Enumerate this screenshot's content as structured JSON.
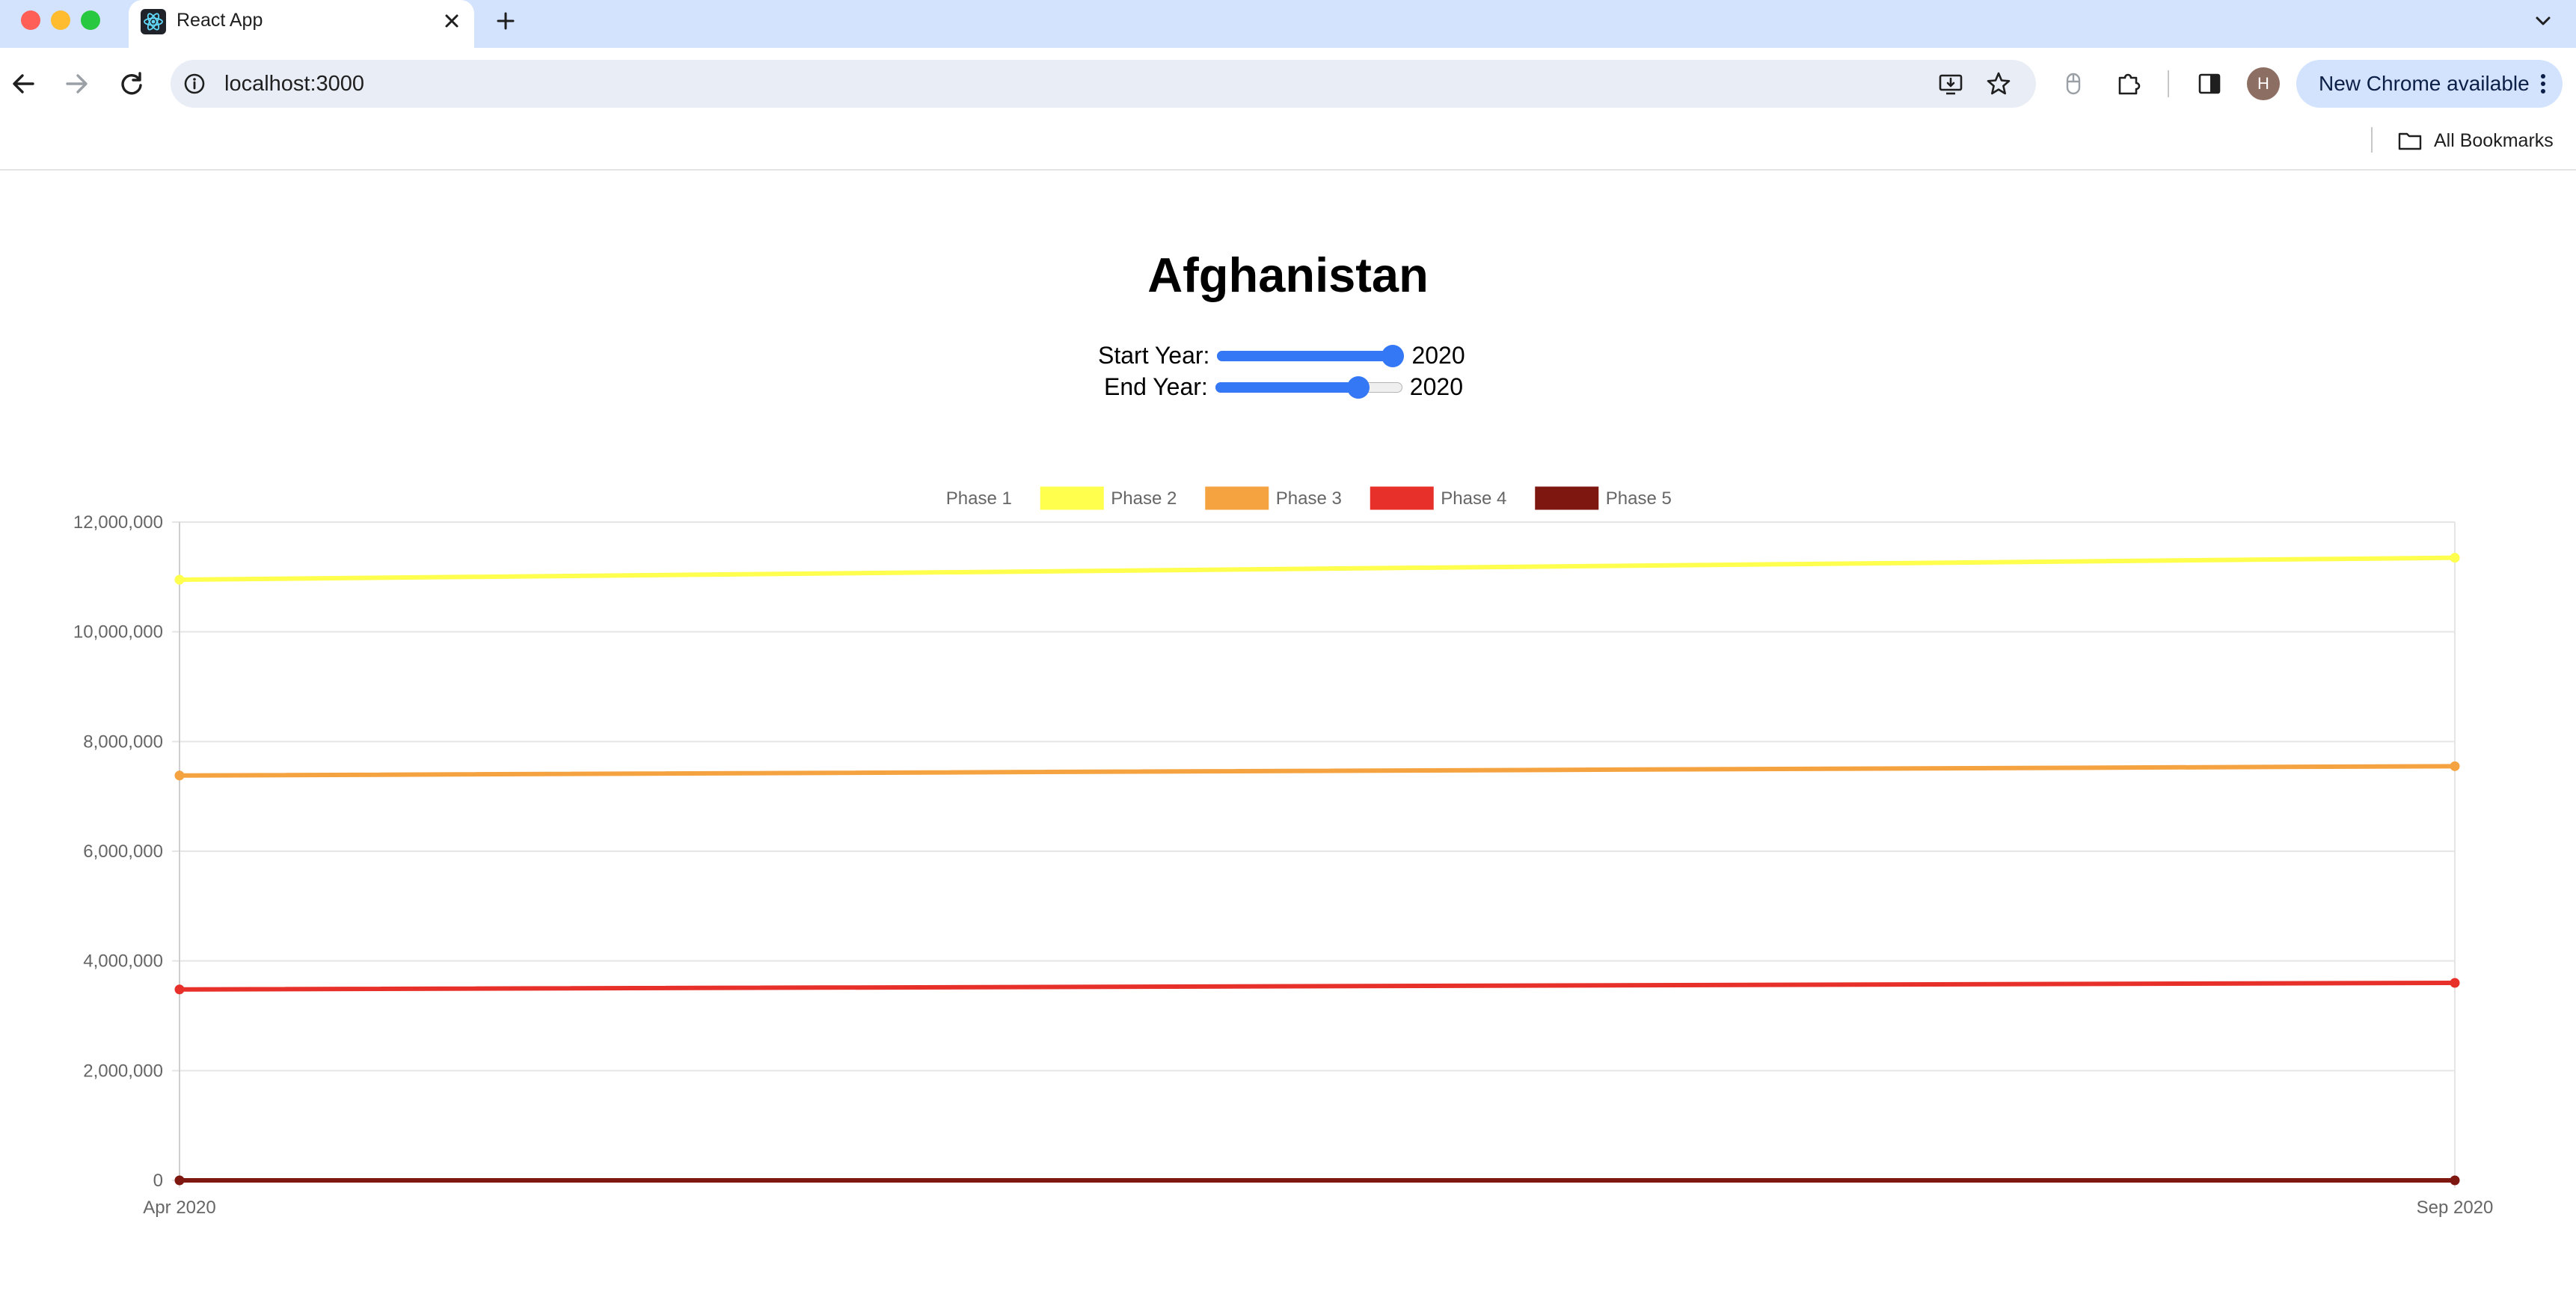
{
  "browser": {
    "tab_title": "React App",
    "url": "localhost:3000",
    "update_button_label": "New Chrome available",
    "avatar_initial": "H",
    "bookmarks_label": "All Bookmarks",
    "icons": [
      "tab-favicon-react-icon",
      "close-icon",
      "plus-icon",
      "chevron-down-icon",
      "back-arrow-icon",
      "forward-arrow-icon",
      "reload-icon",
      "site-info-icon",
      "install-app-icon",
      "bookmark-star-icon",
      "extension-mouse-icon",
      "extensions-puzzle-icon",
      "side-panel-icon",
      "more-vert-icon",
      "folder-icon"
    ]
  },
  "page": {
    "title": "Afghanistan",
    "start_year_label": "Start Year:",
    "start_year_value": "2020",
    "start_year_slider_fraction": 1.0,
    "end_year_label": "End Year:",
    "end_year_value": "2020",
    "end_year_slider_fraction": 0.8
  },
  "chart_data": {
    "type": "line",
    "x": [
      "Apr 2020",
      "Sep 2020"
    ],
    "ylim": [
      0,
      12000000
    ],
    "yticks": [
      0,
      2000000,
      4000000,
      6000000,
      8000000,
      10000000,
      12000000
    ],
    "ytick_labels": [
      "0",
      "2,000,000",
      "4,000,000",
      "6,000,000",
      "8,000,000",
      "10,000,000",
      "12,000,000"
    ],
    "grid": true,
    "legend_position": "top",
    "series": [
      {
        "name": "Phase 1",
        "color": "#ffffff",
        "values": [
          0,
          0
        ]
      },
      {
        "name": "Phase 2",
        "color": "#ffff4d",
        "values": [
          10950000,
          11350000
        ]
      },
      {
        "name": "Phase 3",
        "color": "#f4a340",
        "values": [
          7380000,
          7550000
        ]
      },
      {
        "name": "Phase 4",
        "color": "#e8302a",
        "values": [
          3480000,
          3600000
        ]
      },
      {
        "name": "Phase 5",
        "color": "#7f1711",
        "values": [
          0,
          0
        ]
      }
    ]
  }
}
